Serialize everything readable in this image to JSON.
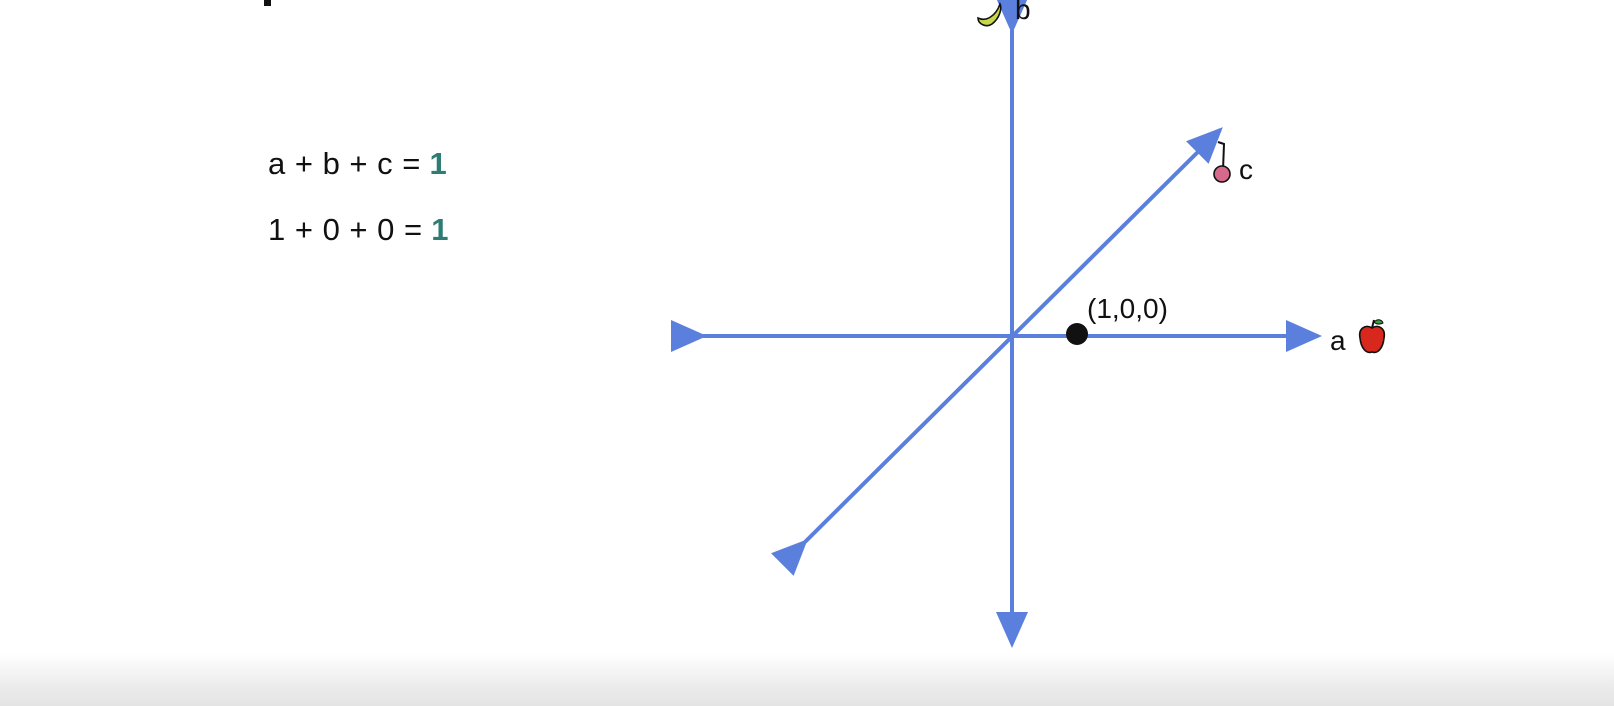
{
  "equations": [
    {
      "lhs": "a + b + c =",
      "rhs": "1"
    },
    {
      "lhs": "1 + 0 + 0 =",
      "rhs": "1"
    }
  ],
  "axes": {
    "a_label": "a",
    "b_label": "b",
    "c_label": "c",
    "color": "#5b7fdd"
  },
  "point": {
    "label": "(1,0,0)",
    "coords": [
      1,
      0,
      0
    ]
  },
  "icons": {
    "a": "apple-icon",
    "b": "banana-icon",
    "c": "cherry-icon"
  },
  "colors": {
    "accent_value": "#2e7d74",
    "axis": "#5b7fdd"
  }
}
